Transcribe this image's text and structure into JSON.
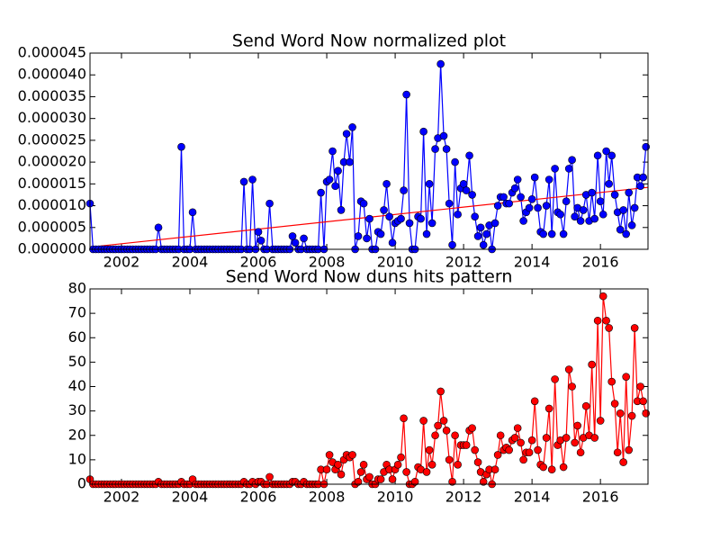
{
  "chart_data": [
    {
      "type": "line",
      "title": "Send Word Now normalized plot",
      "color": "#0000ff",
      "x": [
        2001.08,
        2001.17,
        2001.25,
        2001.33,
        2001.42,
        2001.5,
        2001.58,
        2001.67,
        2001.75,
        2001.83,
        2001.92,
        2002,
        2002.08,
        2002.17,
        2002.25,
        2002.33,
        2002.42,
        2002.5,
        2002.58,
        2002.67,
        2002.75,
        2002.83,
        2002.92,
        2003,
        2003.08,
        2003.17,
        2003.25,
        2003.33,
        2003.42,
        2003.5,
        2003.58,
        2003.67,
        2003.75,
        2003.83,
        2003.92,
        2004,
        2004.08,
        2004.17,
        2004.25,
        2004.33,
        2004.42,
        2004.5,
        2004.58,
        2004.67,
        2004.75,
        2004.83,
        2004.92,
        2005,
        2005.08,
        2005.17,
        2005.25,
        2005.33,
        2005.42,
        2005.5,
        2005.58,
        2005.67,
        2005.75,
        2005.83,
        2005.92,
        2006,
        2006.08,
        2006.17,
        2006.25,
        2006.33,
        2006.42,
        2006.5,
        2006.58,
        2006.67,
        2006.75,
        2006.83,
        2006.92,
        2007,
        2007.08,
        2007.17,
        2007.25,
        2007.33,
        2007.42,
        2007.5,
        2007.58,
        2007.67,
        2007.75,
        2007.83,
        2007.92,
        2008,
        2008.08,
        2008.17,
        2008.25,
        2008.33,
        2008.42,
        2008.5,
        2008.58,
        2008.67,
        2008.75,
        2008.83,
        2008.92,
        2009,
        2009.08,
        2009.17,
        2009.25,
        2009.33,
        2009.42,
        2009.5,
        2009.58,
        2009.67,
        2009.75,
        2009.83,
        2009.92,
        2010,
        2010.08,
        2010.17,
        2010.25,
        2010.33,
        2010.42,
        2010.5,
        2010.58,
        2010.67,
        2010.75,
        2010.83,
        2010.92,
        2011,
        2011.08,
        2011.17,
        2011.25,
        2011.33,
        2011.42,
        2011.5,
        2011.58,
        2011.67,
        2011.75,
        2011.83,
        2011.92,
        2012,
        2012.08,
        2012.17,
        2012.25,
        2012.33,
        2012.42,
        2012.5,
        2012.58,
        2012.67,
        2012.75,
        2012.83,
        2012.92,
        2013,
        2013.08,
        2013.17,
        2013.25,
        2013.33,
        2013.42,
        2013.5,
        2013.58,
        2013.67,
        2013.75,
        2013.83,
        2013.92,
        2014,
        2014.08,
        2014.17,
        2014.25,
        2014.33,
        2014.42,
        2014.5,
        2014.58,
        2014.67,
        2014.75,
        2014.83,
        2014.92,
        2015,
        2015.08,
        2015.17,
        2015.25,
        2015.33,
        2015.42,
        2015.5,
        2015.58,
        2015.67,
        2015.75,
        2015.83,
        2015.92,
        2016,
        2016.08,
        2016.17,
        2016.25,
        2016.33,
        2016.42,
        2016.5,
        2016.58,
        2016.67,
        2016.75,
        2016.83,
        2016.92,
        2017,
        2017.08,
        2017.17,
        2017.25,
        2017.33
      ],
      "values": [
        1.05e-05,
        0,
        0,
        0,
        0,
        0,
        0,
        0,
        0,
        0,
        0,
        0,
        0,
        0,
        0,
        0,
        0,
        0,
        0,
        0,
        0,
        0,
        0,
        0,
        5e-06,
        0,
        0,
        0,
        0,
        0,
        0,
        0,
        2.35e-05,
        0,
        0,
        0,
        8.5e-06,
        0,
        0,
        0,
        0,
        0,
        0,
        0,
        0,
        0,
        0,
        0,
        0,
        0,
        0,
        0,
        0,
        0,
        1.55e-05,
        0,
        0,
        1.6e-05,
        0,
        4e-06,
        2e-06,
        0,
        0,
        1.05e-05,
        0,
        0,
        0,
        0,
        0,
        0,
        0,
        3e-06,
        1.5e-06,
        0,
        0,
        2.5e-06,
        0,
        0,
        0,
        0,
        0,
        1.3e-05,
        0,
        1.55e-05,
        1.6e-05,
        2.25e-05,
        1.45e-05,
        1.8e-05,
        9e-06,
        2e-05,
        2.65e-05,
        2e-05,
        2.8e-05,
        0,
        3e-06,
        1.1e-05,
        1.05e-05,
        2.5e-06,
        7e-06,
        0,
        0,
        4e-06,
        3.5e-06,
        9e-06,
        1.5e-05,
        7.5e-06,
        1.5e-06,
        6e-06,
        6.5e-06,
        7e-06,
        1.35e-05,
        3.55e-05,
        6e-06,
        0,
        0,
        7.5e-06,
        7e-06,
        2.7e-05,
        3.5e-06,
        1.5e-05,
        6e-06,
        2.3e-05,
        2.55e-05,
        4.25e-05,
        2.6e-05,
        2.3e-05,
        1.05e-05,
        1e-06,
        2e-05,
        8e-06,
        1.4e-05,
        1.5e-05,
        1.35e-05,
        2.15e-05,
        1.25e-05,
        7.5e-06,
        3e-06,
        5e-06,
        1e-06,
        3.5e-06,
        5.5e-06,
        0,
        6e-06,
        1e-05,
        1.2e-05,
        1.2e-05,
        1.05e-05,
        1.05e-05,
        1.3e-05,
        1.4e-05,
        1.6e-05,
        1.2e-05,
        6.5e-06,
        8.5e-06,
        9.5e-06,
        1.15e-05,
        1.65e-05,
        9.5e-06,
        4e-06,
        3.5e-06,
        1e-05,
        1.6e-05,
        3.5e-06,
        1.85e-05,
        8.5e-06,
        8e-06,
        3.5e-06,
        1.1e-05,
        1.85e-05,
        2.05e-05,
        7.5e-06,
        9.5e-06,
        6.5e-06,
        9e-06,
        1.25e-05,
        6.5e-06,
        1.3e-05,
        7e-06,
        2.15e-05,
        1.1e-05,
        8e-06,
        2.25e-05,
        1.5e-05,
        2.15e-05,
        1.25e-05,
        8.5e-06,
        4.5e-06,
        9e-06,
        3.5e-06,
        1.3e-05,
        5.5e-06,
        9.5e-06,
        1.65e-05,
        1.45e-05,
        1.65e-05,
        2.35e-05
      ],
      "trend": {
        "color": "#ff0000",
        "x": [
          2001.08,
          2017.39
        ],
        "values": [
          5e-07,
          1.42e-05
        ]
      },
      "xlim": [
        2001.08,
        2017.39
      ],
      "xticks": [
        2002,
        2004,
        2006,
        2008,
        2010,
        2012,
        2014,
        2016
      ],
      "ylim": [
        0,
        4.5e-05
      ],
      "yticks": [
        {
          "value": 0,
          "label": "0.000000"
        },
        {
          "value": 5e-06,
          "label": "0.000005"
        },
        {
          "value": 1e-05,
          "label": "0.000010"
        },
        {
          "value": 1.5e-05,
          "label": "0.000015"
        },
        {
          "value": 2e-05,
          "label": "0.000020"
        },
        {
          "value": 2.5e-05,
          "label": "0.000025"
        },
        {
          "value": 3e-05,
          "label": "0.000030"
        },
        {
          "value": 3.5e-05,
          "label": "0.000035"
        },
        {
          "value": 4e-05,
          "label": "0.000040"
        },
        {
          "value": 4.5e-05,
          "label": "0.000045"
        }
      ]
    },
    {
      "type": "line",
      "title": "Send Word Now duns hits pattern",
      "color": "#ff0000",
      "x": [
        2001.08,
        2001.17,
        2001.25,
        2001.33,
        2001.42,
        2001.5,
        2001.58,
        2001.67,
        2001.75,
        2001.83,
        2001.92,
        2002,
        2002.08,
        2002.17,
        2002.25,
        2002.33,
        2002.42,
        2002.5,
        2002.58,
        2002.67,
        2002.75,
        2002.83,
        2002.92,
        2003,
        2003.08,
        2003.17,
        2003.25,
        2003.33,
        2003.42,
        2003.5,
        2003.58,
        2003.67,
        2003.75,
        2003.83,
        2003.92,
        2004,
        2004.08,
        2004.17,
        2004.25,
        2004.33,
        2004.42,
        2004.5,
        2004.58,
        2004.67,
        2004.75,
        2004.83,
        2004.92,
        2005,
        2005.08,
        2005.17,
        2005.25,
        2005.33,
        2005.42,
        2005.5,
        2005.58,
        2005.67,
        2005.75,
        2005.83,
        2005.92,
        2006,
        2006.08,
        2006.17,
        2006.25,
        2006.33,
        2006.42,
        2006.5,
        2006.58,
        2006.67,
        2006.75,
        2006.83,
        2006.92,
        2007,
        2007.08,
        2007.17,
        2007.25,
        2007.33,
        2007.42,
        2007.5,
        2007.58,
        2007.67,
        2007.75,
        2007.83,
        2007.92,
        2008,
        2008.08,
        2008.17,
        2008.25,
        2008.33,
        2008.42,
        2008.5,
        2008.58,
        2008.67,
        2008.75,
        2008.83,
        2008.92,
        2009,
        2009.08,
        2009.17,
        2009.25,
        2009.33,
        2009.42,
        2009.5,
        2009.58,
        2009.67,
        2009.75,
        2009.83,
        2009.92,
        2010,
        2010.08,
        2010.17,
        2010.25,
        2010.33,
        2010.42,
        2010.5,
        2010.58,
        2010.67,
        2010.75,
        2010.83,
        2010.92,
        2011,
        2011.08,
        2011.17,
        2011.25,
        2011.33,
        2011.42,
        2011.5,
        2011.58,
        2011.67,
        2011.75,
        2011.83,
        2011.92,
        2012,
        2012.08,
        2012.17,
        2012.25,
        2012.33,
        2012.42,
        2012.5,
        2012.58,
        2012.67,
        2012.75,
        2012.83,
        2012.92,
        2013,
        2013.08,
        2013.17,
        2013.25,
        2013.33,
        2013.42,
        2013.5,
        2013.58,
        2013.67,
        2013.75,
        2013.83,
        2013.92,
        2014,
        2014.08,
        2014.17,
        2014.25,
        2014.33,
        2014.42,
        2014.5,
        2014.58,
        2014.67,
        2014.75,
        2014.83,
        2014.92,
        2015,
        2015.08,
        2015.17,
        2015.25,
        2015.33,
        2015.42,
        2015.5,
        2015.58,
        2015.67,
        2015.75,
        2015.83,
        2015.92,
        2016,
        2016.08,
        2016.17,
        2016.25,
        2016.33,
        2016.42,
        2016.5,
        2016.58,
        2016.67,
        2016.75,
        2016.83,
        2016.92,
        2017,
        2017.08,
        2017.17,
        2017.25,
        2017.33
      ],
      "values": [
        2,
        0,
        0,
        0,
        0,
        0,
        0,
        0,
        0,
        0,
        0,
        0,
        0,
        0,
        0,
        0,
        0,
        0,
        0,
        0,
        0,
        0,
        0,
        0,
        1,
        0,
        0,
        0,
        0,
        0,
        0,
        0,
        1,
        0,
        0,
        0,
        2,
        0,
        0,
        0,
        0,
        0,
        0,
        0,
        0,
        0,
        0,
        0,
        0,
        0,
        0,
        0,
        0,
        0,
        1,
        0,
        0,
        1,
        0,
        1,
        1,
        0,
        0,
        3,
        0,
        0,
        0,
        0,
        0,
        0,
        0,
        1,
        1,
        0,
        0,
        1,
        0,
        0,
        0,
        0,
        0,
        6,
        0,
        6,
        12,
        9,
        6,
        8,
        4,
        10,
        12,
        11,
        12,
        0,
        1,
        5,
        8,
        2,
        3,
        0,
        0,
        2,
        2,
        5,
        8,
        6,
        2,
        6,
        8,
        11,
        27,
        5,
        0,
        0,
        1,
        7,
        6,
        26,
        5,
        14,
        8,
        20,
        24,
        38,
        26,
        22,
        10,
        1,
        20,
        8,
        16,
        16,
        16,
        22,
        23,
        14,
        9,
        5,
        1,
        4,
        6,
        0,
        6,
        12,
        20,
        14,
        15,
        14,
        18,
        19,
        23,
        17,
        10,
        13,
        13,
        18,
        34,
        14,
        8,
        7,
        19,
        31,
        6,
        43,
        16,
        18,
        7,
        19,
        47,
        40,
        17,
        24,
        13,
        19,
        32,
        20,
        49,
        19,
        67,
        26,
        77,
        67,
        64,
        42,
        33,
        13,
        29,
        9,
        44,
        14,
        28,
        64,
        34,
        40,
        34,
        29
      ],
      "xlim": [
        2001.08,
        2017.39
      ],
      "xticks": [
        2002,
        2004,
        2006,
        2008,
        2010,
        2012,
        2014,
        2016
      ],
      "ylim": [
        0,
        80
      ],
      "yticks": [
        0,
        10,
        20,
        30,
        40,
        50,
        60,
        70,
        80
      ]
    }
  ]
}
